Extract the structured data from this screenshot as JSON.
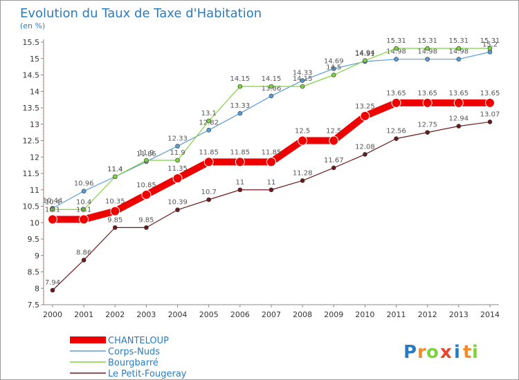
{
  "chart_data": {
    "type": "line",
    "title": "Evolution du Taux de Taxe d'Habitation",
    "subtitle": "(en %)",
    "xlabel": "",
    "ylabel": "",
    "categories": [
      "2000",
      "2001",
      "2002",
      "2003",
      "2004",
      "2005",
      "2006",
      "2007",
      "2008",
      "2009",
      "2010",
      "2011",
      "2012",
      "2013",
      "2014"
    ],
    "ylim": [
      7.5,
      15.5
    ],
    "yticks": [
      "7.5",
      "8",
      "8.5",
      "9",
      "9.5",
      "10",
      "10.5",
      "11",
      "11.5",
      "12",
      "12.5",
      "13",
      "13.5",
      "14",
      "14.5",
      "15",
      "15.5"
    ],
    "grid": false,
    "legend_position": "bottom-left",
    "series": [
      {
        "name": "CHANTELOUP",
        "color": "#ee0000",
        "values": [
          10.1,
          10.1,
          10.35,
          10.85,
          11.35,
          11.85,
          11.85,
          11.85,
          12.5,
          12.5,
          13.25,
          13.65,
          13.65,
          13.65,
          13.65
        ],
        "labels": [
          "10.1",
          "10.1",
          "10.35",
          "10.85",
          "11.35",
          "11.85",
          "11.85",
          "11.85",
          "12.5",
          "12.5",
          "13.25",
          "13.65",
          "13.65",
          "13.65",
          "13.65"
        ]
      },
      {
        "name": "Corps-Nuds",
        "color": "#5b9bd5",
        "values": [
          10.44,
          10.96,
          11.4,
          11.86,
          12.33,
          12.82,
          13.33,
          13.86,
          14.33,
          14.69,
          14.91,
          14.98,
          14.98,
          14.98,
          15.2
        ],
        "labels": [
          "10.44",
          "10.96",
          "11.4",
          "11.86",
          "12.33",
          "12.82",
          "13.33",
          "13.86",
          "14.33",
          "14.69",
          "14.91",
          "14.98",
          "14.98",
          "14.98",
          "15.2"
        ]
      },
      {
        "name": "Bourgbarré",
        "color": "#7ed23f",
        "values": [
          10.4,
          10.4,
          11.4,
          11.9,
          11.9,
          13.1,
          14.15,
          14.15,
          14.15,
          14.5,
          14.94,
          15.31,
          15.31,
          15.31,
          15.31
        ],
        "labels": [
          "10.4",
          "10.4",
          "11.4",
          "11.9",
          "11.9",
          "13.1",
          "14.15",
          "14.15",
          "14.15",
          "14.5",
          "14.94",
          "15.31",
          "15.31",
          "15.31",
          "15.31"
        ]
      },
      {
        "name": "Le Petit-Fougeray",
        "color": "#6b1a1a",
        "values": [
          7.94,
          8.86,
          9.85,
          9.85,
          10.39,
          10.7,
          11,
          11,
          11.28,
          11.67,
          12.08,
          12.56,
          12.75,
          12.94,
          13.07
        ],
        "labels": [
          "7.94",
          "8.86",
          "9.85",
          "9.85",
          "10.39",
          "10.7",
          "11",
          "11",
          "11.28",
          "11.67",
          "12.08",
          "12.56",
          "12.75",
          "12.94",
          "13.07"
        ]
      }
    ]
  },
  "logo": {
    "letters": [
      "P",
      "r",
      "o",
      "x",
      "i",
      "t",
      "i"
    ],
    "colors": [
      "#2a7bbf",
      "#f28c28",
      "#7ed23f",
      "#e8452c",
      "#2a7bbf",
      "#f28c28",
      "#7ed23f"
    ]
  }
}
